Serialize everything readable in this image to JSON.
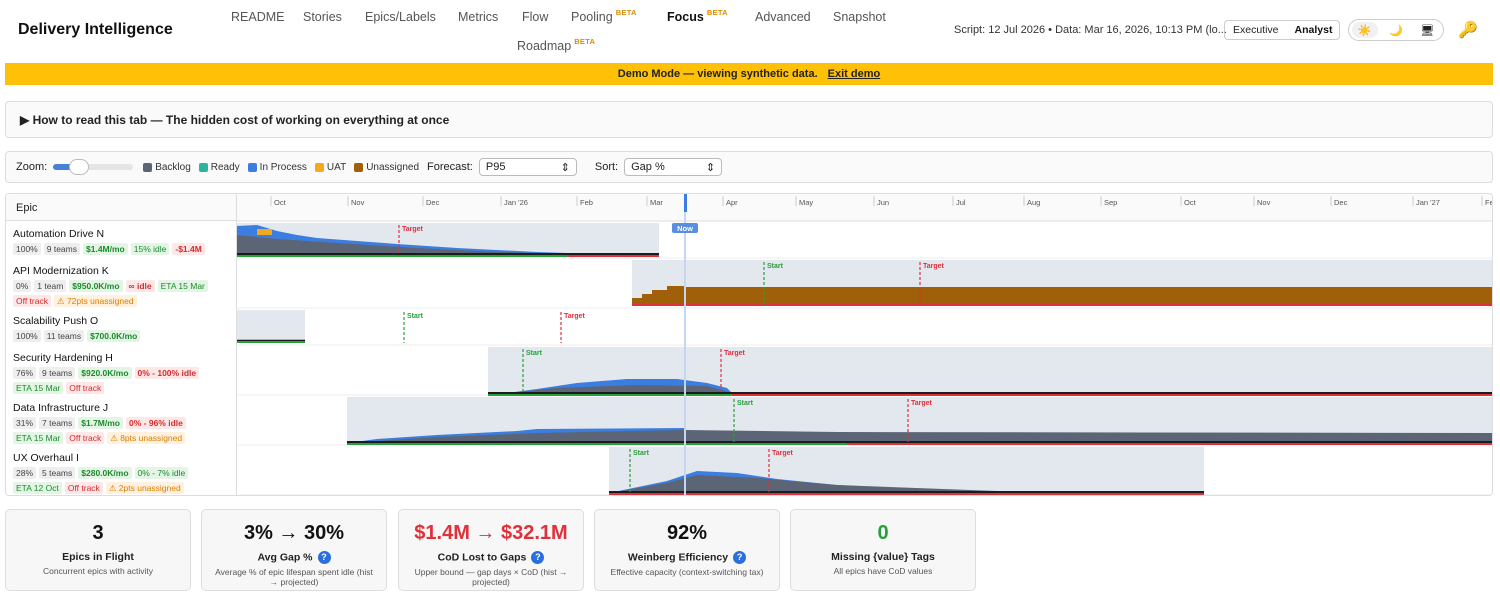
{
  "app_title": "Delivery Intelligence",
  "nav": [
    {
      "label": "README",
      "beta": ""
    },
    {
      "label": "Stories",
      "beta": ""
    },
    {
      "label": "Epics/Labels",
      "beta": ""
    },
    {
      "label": "Metrics",
      "beta": ""
    },
    {
      "label": "Flow",
      "beta": ""
    },
    {
      "label": "Pooling",
      "beta": "BETA"
    },
    {
      "label": "Focus",
      "beta": "BETA"
    },
    {
      "label": "Advanced",
      "beta": ""
    },
    {
      "label": "Snapshot",
      "beta": ""
    },
    {
      "label": "Roadmap",
      "beta": "BETA"
    }
  ],
  "script_info": "Script: 12 Jul 2026 • Data: Mar 16, 2026, 10:13 PM (lo...",
  "mode": {
    "executive": "Executive",
    "analyst": "Analyst"
  },
  "theme": {
    "light": "☀️",
    "dark": "🌙",
    "system": "🖥"
  },
  "key_icon": "🔑",
  "banner": {
    "text": "Demo Mode — viewing synthetic data.",
    "link": "Exit demo"
  },
  "howto": "▶ How to read this tab — The hidden cost of working on everything at once",
  "controls": {
    "zoom_label": "Zoom:",
    "legend": [
      {
        "label": "Backlog",
        "color": "#5b6575"
      },
      {
        "label": "Ready",
        "color": "#2bb59c"
      },
      {
        "label": "In Process",
        "color": "#3b7de0"
      },
      {
        "label": "UAT",
        "color": "#f0a920"
      },
      {
        "label": "Unassigned",
        "color": "#a0600a"
      }
    ],
    "forecast_label": "Forecast:",
    "forecast_value": "P95",
    "sort_label": "Sort:",
    "sort_value": "Gap %"
  },
  "gantt": {
    "epic_header": "Epic",
    "now_label": "Now",
    "start_label": "Start",
    "target_label": "Target",
    "months": [
      "Oct",
      "Nov",
      "Dec",
      "Jan '26",
      "Feb",
      "Mar",
      "Apr",
      "May",
      "Jun",
      "Jul",
      "Aug",
      "Sep",
      "Oct",
      "Nov",
      "Dec",
      "Jan '27",
      "Fe"
    ],
    "epics": [
      {
        "name": "Automation Drive N",
        "badges": [
          {
            "t": "100%",
            "c": ""
          },
          {
            "t": "9 teams",
            "c": ""
          },
          {
            "t": "$1.4M/mo",
            "c": "green"
          },
          {
            "t": "15% idle",
            "c": "greenl"
          },
          {
            "t": "-$1.4M",
            "c": "red"
          }
        ]
      },
      {
        "name": "API Modernization K",
        "badges": [
          {
            "t": "0%",
            "c": ""
          },
          {
            "t": "1 team",
            "c": ""
          },
          {
            "t": "$950.0K/mo",
            "c": "green"
          },
          {
            "t": "∞ idle",
            "c": "red"
          },
          {
            "t": "ETA 15 Mar",
            "c": "greenl"
          },
          {
            "t": "Off track",
            "c": "redl"
          },
          {
            "t": "⚠ 72pts unassigned",
            "c": "orange"
          }
        ]
      },
      {
        "name": "Scalability Push O",
        "badges": [
          {
            "t": "100%",
            "c": ""
          },
          {
            "t": "11 teams",
            "c": ""
          },
          {
            "t": "$700.0K/mo",
            "c": "green"
          }
        ]
      },
      {
        "name": "Security Hardening H",
        "badges": [
          {
            "t": "76%",
            "c": ""
          },
          {
            "t": "9 teams",
            "c": ""
          },
          {
            "t": "$920.0K/mo",
            "c": "green"
          },
          {
            "t": "0% - 100% idle",
            "c": "red"
          },
          {
            "t": "ETA 15 Mar",
            "c": "greenl"
          },
          {
            "t": "Off track",
            "c": "redl"
          }
        ]
      },
      {
        "name": "Data Infrastructure J",
        "badges": [
          {
            "t": "31%",
            "c": ""
          },
          {
            "t": "7 teams",
            "c": ""
          },
          {
            "t": "$1.7M/mo",
            "c": "green"
          },
          {
            "t": "0% - 96% idle",
            "c": "red"
          },
          {
            "t": "ETA 15 Mar",
            "c": "greenl"
          },
          {
            "t": "Off track",
            "c": "redl"
          },
          {
            "t": "⚠ 8pts unassigned",
            "c": "orange"
          }
        ]
      },
      {
        "name": "UX Overhaul I",
        "badges": [
          {
            "t": "28%",
            "c": ""
          },
          {
            "t": "5 teams",
            "c": ""
          },
          {
            "t": "$280.0K/mo",
            "c": "green"
          },
          {
            "t": "0% - 7% idle",
            "c": "greenl"
          },
          {
            "t": "ETA 12 Oct",
            "c": "greenl"
          },
          {
            "t": "Off track",
            "c": "redl"
          },
          {
            "t": "⚠ 2pts unassigned",
            "c": "orange"
          }
        ]
      }
    ]
  },
  "kpis": [
    {
      "value": "3",
      "label": "Epics in Flight",
      "sub": "Concurrent epics with activity",
      "color": "",
      "help": false
    },
    {
      "value": "3% → 30%",
      "label": "Avg Gap %",
      "sub": "Average % of epic lifespan spent idle (hist → projected)",
      "color": "",
      "help": true
    },
    {
      "value": "$1.4M → $32.1M",
      "label": "CoD Lost to Gaps",
      "sub": "Upper bound — gap days × CoD (hist → projected)",
      "color": "red",
      "help": true
    },
    {
      "value": "92%",
      "label": "Weinberg Efficiency",
      "sub": "Effective capacity (context-switching tax)",
      "color": "",
      "help": true
    },
    {
      "value": "0",
      "label": "Missing {value} Tags",
      "sub": "All epics have CoD values",
      "color": "green",
      "help": false
    }
  ]
}
